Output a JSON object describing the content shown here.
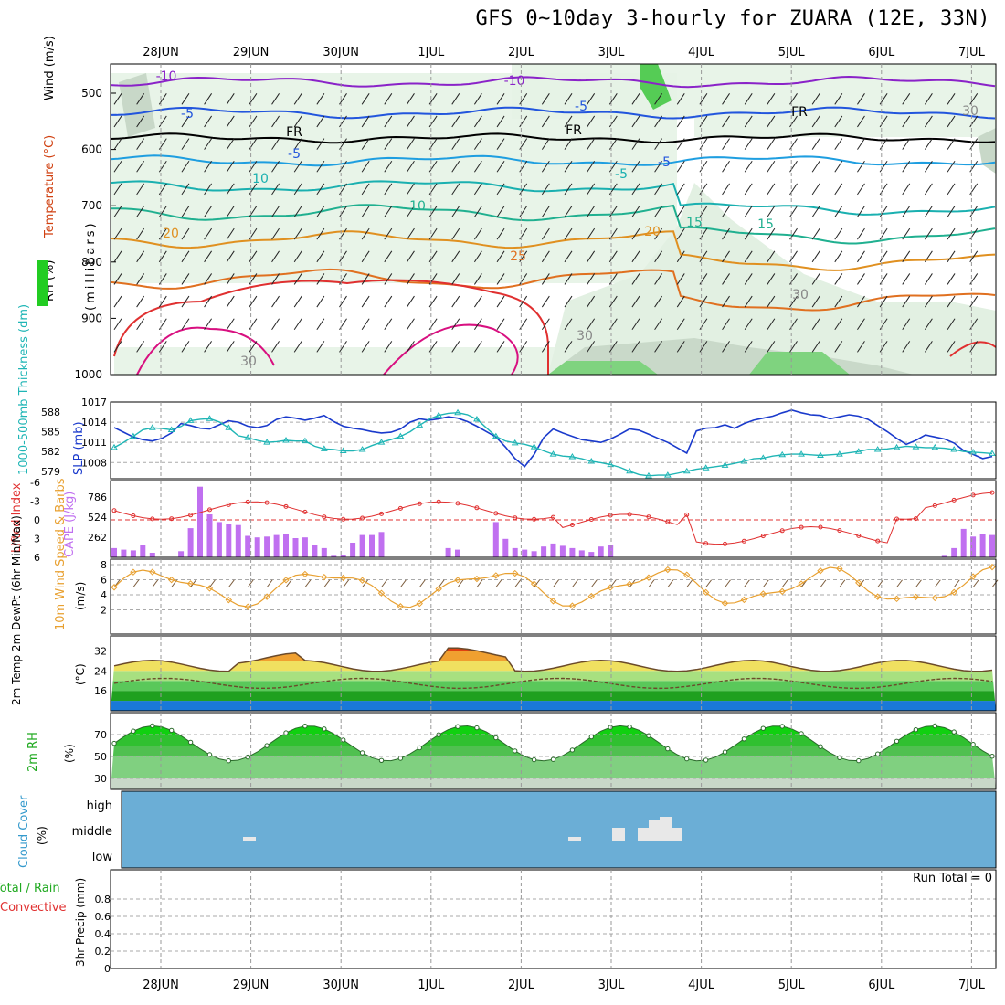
{
  "title": "GFS 0~10day 3-hourly for ZUARA (12E, 33N)",
  "colors": {
    "rh_green": "#7fd37f",
    "temp_red": "#e03030",
    "blue": "#2a48c8",
    "cyan": "#1fb5b5",
    "purple": "#c070f0",
    "orange": "#e8a030",
    "brown": "#6b4a2a"
  },
  "chart_data": {
    "type": "meteogram",
    "date_labels": [
      "28JUN",
      "29JUN",
      "30JUN",
      "1JUL",
      "2JUL",
      "3JUL",
      "4JUL",
      "5JUL",
      "6JUL",
      "7JUL"
    ],
    "panels": {
      "upper_air": {
        "ylabel": "(millibars)",
        "yticks": [
          "500",
          "600",
          "700",
          "800",
          "900",
          "1000"
        ],
        "legend": [
          "Wind (m/s)",
          "Temperature (°C)",
          "RH (%)"
        ],
        "contour_labels": [
          "-10",
          "-10",
          "-5",
          "-5",
          "-5",
          "FR",
          "FR",
          "FR",
          "-5",
          "-5",
          "10",
          "10",
          "15",
          "15",
          "20",
          "20",
          "25",
          "30",
          "30",
          "30",
          "30"
        ]
      },
      "thickness_slp": {
        "ylabel_left": "1000-500mb Thickness (dm)",
        "ylabel_right": "SLP (mb)",
        "left_ticks": [
          "588",
          "585",
          "582",
          "579"
        ],
        "right_ticks": [
          "1017",
          "1014",
          "1011",
          "1008"
        ],
        "slp": [
          1013.2,
          1012.5,
          1011.8,
          1011.4,
          1011.2,
          1011.6,
          1012.4,
          1013.8,
          1013.5,
          1013.1,
          1013.0,
          1013.6,
          1014.2,
          1014.0,
          1013.4,
          1013.2,
          1013.5,
          1014.4,
          1014.8,
          1014.6,
          1014.3,
          1014.6,
          1015.0,
          1014.1,
          1013.4,
          1013.1,
          1012.9,
          1012.6,
          1012.4,
          1012.5,
          1013.0,
          1014.0,
          1014.5,
          1014.3,
          1014.5,
          1014.8,
          1014.6,
          1014.1,
          1013.4,
          1012.6,
          1011.8,
          1010.3,
          1008.6,
          1007.4,
          1009.2,
          1011.7,
          1013.0,
          1012.4,
          1011.9,
          1011.4,
          1011.2,
          1011.0,
          1011.5,
          1012.2,
          1013.0,
          1012.8,
          1012.2,
          1011.6,
          1011.0,
          1010.2,
          1009.4,
          1012.7,
          1013.1,
          1013.2,
          1013.6,
          1013.1,
          1013.8,
          1014.3,
          1014.6,
          1014.9,
          1015.4,
          1015.8,
          1015.4,
          1015.1,
          1015.0,
          1014.5,
          1014.8,
          1015.1,
          1014.9,
          1014.4,
          1013.5,
          1012.6,
          1011.6,
          1010.7,
          1011.3,
          1012.1,
          1011.8,
          1011.5,
          1010.9,
          1009.8,
          1009.2,
          1008.6,
          1008.9
        ],
        "thickness": [
          582.6,
          583.4,
          584.3,
          585.3,
          585.6,
          585.5,
          585.3,
          585.8,
          586.7,
          586.9,
          587.0,
          586.5,
          585.6,
          584.4,
          584.1,
          583.7,
          583.4,
          583.5,
          583.7,
          583.6,
          583.6,
          582.8,
          582.4,
          582.3,
          582.1,
          582.1,
          582.3,
          582.9,
          583.4,
          583.8,
          584.3,
          585.0,
          586.0,
          586.9,
          587.5,
          587.8,
          587.9,
          587.6,
          586.9,
          585.6,
          584.3,
          583.6,
          583.3,
          583.1,
          582.7,
          582.1,
          581.6,
          581.3,
          581.2,
          580.9,
          580.5,
          580.3,
          580.0,
          579.6,
          579.0,
          578.5,
          578.3,
          578.4,
          578.4,
          578.7,
          579.0,
          579.3,
          579.5,
          579.7,
          579.9,
          580.2,
          580.5,
          580.9,
          581.0,
          581.3,
          581.5,
          581.6,
          581.6,
          581.5,
          581.4,
          581.5,
          581.6,
          581.8,
          582.0,
          582.3,
          582.3,
          582.4,
          582.6,
          582.8,
          582.7,
          582.6,
          582.6,
          582.5,
          582.3,
          582.0,
          581.9,
          581.8,
          581.7
        ]
      },
      "cape_li": {
        "ylabel_left": "Lifted Index",
        "ylabel_right": "CAPE (J/kg)",
        "li_ticks": [
          "-6",
          "-3",
          "0",
          "3",
          "6"
        ],
        "cape_ticks": [
          "786",
          "524",
          "262"
        ],
        "cape": [
          120,
          100,
          90,
          160,
          60,
          0,
          0,
          80,
          380,
          920,
          560,
          460,
          430,
          420,
          280,
          260,
          270,
          290,
          300,
          250,
          260,
          160,
          120,
          20,
          30,
          190,
          290,
          290,
          330,
          0,
          0,
          0,
          0,
          0,
          0,
          120,
          100,
          0,
          0,
          0,
          460,
          240,
          120,
          100,
          80,
          140,
          180,
          150,
          120,
          90,
          70,
          140,
          160,
          0,
          0,
          0,
          0,
          0,
          0,
          0,
          0,
          0,
          0,
          0,
          0,
          0,
          0,
          0,
          0,
          0,
          0,
          0,
          0,
          0,
          0,
          0,
          0,
          0,
          0,
          0,
          0,
          0,
          0,
          0,
          0,
          0,
          0,
          20,
          120,
          370,
          270,
          300,
          290
        ]
      },
      "wind10m": {
        "ylabel": "10m Wind Speed & Barbs",
        "unit": "(m/s)",
        "yticks": [
          "8",
          "6",
          "4",
          "2"
        ]
      },
      "temp2m": {
        "ylabel": "2m Temp 2m DewPt (6hr Min/Max)",
        "unit": "(°C)",
        "yticks": [
          "32",
          "24",
          "16"
        ]
      },
      "rh2m": {
        "ylabel": "2m RH",
        "unit": "(%)",
        "yticks": [
          "70",
          "50",
          "30"
        ]
      },
      "cloud": {
        "ylabel": "Cloud Cover",
        "unit": "(%)",
        "levels": [
          "high",
          "middle",
          "low"
        ]
      },
      "precip": {
        "ylabel_left": "Total / Rain",
        "ylabel_conv": "Convective",
        "ylabel": "3hr Precip (mm)",
        "yticks": [
          "0.8",
          "0.6",
          "0.4",
          "0.2",
          "0"
        ],
        "run_total": "Run Total = 0"
      }
    }
  }
}
